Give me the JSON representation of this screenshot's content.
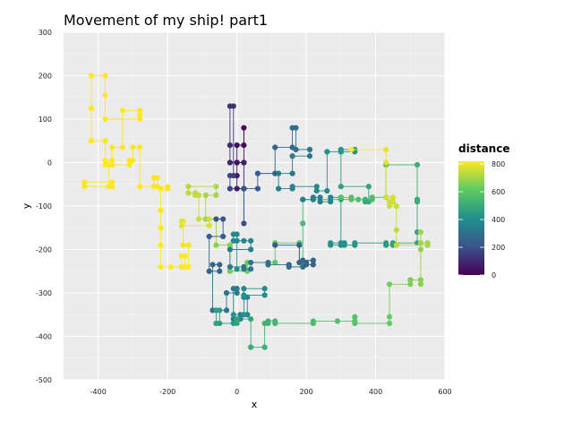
{
  "chart_data": {
    "type": "scatter",
    "title": "Movement of my ship! part1",
    "xlabel": "x",
    "ylabel": "y",
    "xlim": [
      -500,
      600
    ],
    "ylim": [
      -500,
      300
    ],
    "xticks": [
      "-400",
      "-200",
      "0",
      "200",
      "400",
      "600"
    ],
    "xtick_values": [
      -400,
      -200,
      0,
      200,
      400,
      600
    ],
    "yticks": [
      "300",
      "200",
      "100",
      "0",
      "-100",
      "-200",
      "-300",
      "-400",
      "-500"
    ],
    "ytick_values": [
      300,
      200,
      100,
      0,
      -100,
      -200,
      -300,
      -400,
      -500
    ],
    "grid": true,
    "legend": {
      "title": "distance",
      "placement": "right",
      "ticks": [
        "0",
        "200",
        "400",
        "600",
        "800"
      ],
      "tick_values": [
        0,
        200,
        400,
        600,
        800
      ],
      "range": [
        0,
        820
      ]
    },
    "colors": {
      "panel_bg": "#ebebeb",
      "grid_major": "#ffffff",
      "viridis": [
        "#440154",
        "#3b528b",
        "#21918c",
        "#5ec962",
        "#fde725"
      ]
    },
    "path": [
      [
        0,
        0
      ],
      [
        20,
        0
      ],
      [
        20,
        80
      ],
      [
        20,
        40
      ],
      [
        0,
        40
      ],
      [
        0,
        0
      ],
      [
        0,
        -30
      ],
      [
        0,
        -60
      ],
      [
        20,
        -60
      ],
      [
        20,
        0
      ],
      [
        -20,
        0
      ],
      [
        -20,
        40
      ],
      [
        -20,
        130
      ],
      [
        -10,
        130
      ],
      [
        -10,
        -30
      ],
      [
        -20,
        -30
      ],
      [
        -20,
        -60
      ],
      [
        20,
        -60
      ],
      [
        20,
        -140
      ],
      [
        20,
        -60
      ],
      [
        60,
        -60
      ],
      [
        60,
        -25
      ],
      [
        110,
        -25
      ],
      [
        110,
        35
      ],
      [
        160,
        35
      ],
      [
        160,
        80
      ],
      [
        170,
        80
      ],
      [
        170,
        30
      ],
      [
        210,
        30
      ],
      [
        210,
        15
      ],
      [
        160,
        15
      ],
      [
        160,
        -25
      ],
      [
        120,
        -25
      ],
      [
        120,
        -60
      ],
      [
        160,
        -60
      ],
      [
        160,
        -55
      ],
      [
        230,
        -55
      ],
      [
        230,
        -65
      ],
      [
        260,
        -65
      ],
      [
        260,
        25
      ],
      [
        300,
        25
      ],
      [
        300,
        30
      ],
      [
        340,
        30
      ],
      [
        340,
        25
      ],
      [
        300,
        25
      ],
      [
        300,
        -55
      ],
      [
        380,
        -55
      ],
      [
        380,
        -90
      ],
      [
        370,
        -90
      ],
      [
        370,
        -85
      ],
      [
        300,
        -85
      ],
      [
        270,
        -85
      ],
      [
        220,
        -85
      ],
      [
        190,
        -85
      ],
      [
        190,
        -140
      ],
      [
        190,
        -230
      ],
      [
        180,
        -230
      ],
      [
        180,
        -185
      ],
      [
        110,
        -185
      ],
      [
        110,
        -230
      ],
      [
        30,
        -230
      ],
      [
        30,
        -250
      ],
      [
        -20,
        -250
      ],
      [
        -20,
        -190
      ],
      [
        -60,
        -190
      ],
      [
        -60,
        -130
      ],
      [
        -90,
        -130
      ],
      [
        -90,
        -75
      ],
      [
        -60,
        -75
      ],
      [
        -60,
        -55
      ],
      [
        -140,
        -55
      ],
      [
        -140,
        -70
      ],
      [
        -120,
        -70
      ],
      [
        -120,
        -75
      ],
      [
        -110,
        -75
      ],
      [
        -110,
        -130
      ],
      [
        -80,
        -130
      ],
      [
        -80,
        -145
      ],
      [
        -160,
        -145
      ],
      [
        -160,
        -135
      ],
      [
        -155,
        -135
      ],
      [
        -155,
        -190
      ],
      [
        -140,
        -190
      ],
      [
        -140,
        -240
      ],
      [
        -160,
        -240
      ],
      [
        -160,
        -215
      ],
      [
        -150,
        -215
      ],
      [
        -150,
        -240
      ],
      [
        -190,
        -240
      ],
      [
        -220,
        -240
      ],
      [
        -220,
        -190
      ],
      [
        -220,
        -150
      ],
      [
        -220,
        -110
      ],
      [
        -220,
        -60
      ],
      [
        -200,
        -60
      ],
      [
        -200,
        -55
      ],
      [
        -240,
        -55
      ],
      [
        -240,
        -35
      ],
      [
        -230,
        -35
      ],
      [
        -230,
        -55
      ],
      [
        -240,
        -55
      ],
      [
        -280,
        -55
      ],
      [
        -280,
        35
      ],
      [
        -300,
        35
      ],
      [
        -300,
        5
      ],
      [
        -310,
        5
      ],
      [
        -310,
        -5
      ],
      [
        -360,
        -5
      ],
      [
        -360,
        5
      ],
      [
        -380,
        5
      ],
      [
        -380,
        -5
      ],
      [
        -360,
        -5
      ],
      [
        -360,
        35
      ],
      [
        -330,
        35
      ],
      [
        -330,
        120
      ],
      [
        -280,
        120
      ],
      [
        -280,
        110
      ],
      [
        -280,
        100
      ],
      [
        -380,
        100
      ],
      [
        -380,
        155
      ],
      [
        -380,
        200
      ],
      [
        -420,
        200
      ],
      [
        -420,
        125
      ],
      [
        -420,
        50
      ],
      [
        -380,
        50
      ],
      [
        -380,
        -5
      ],
      [
        -370,
        -5
      ],
      [
        -370,
        -55
      ],
      [
        -360,
        -55
      ],
      [
        -360,
        -45
      ],
      [
        -440,
        -45
      ],
      [
        -440,
        -55
      ],
      [
        -360,
        -55
      ]
    ],
    "path2": [
      [
        -60,
        -130
      ],
      [
        -40,
        -130
      ],
      [
        -40,
        -170
      ],
      [
        -80,
        -170
      ],
      [
        -80,
        -250
      ],
      [
        -50,
        -250
      ],
      [
        -50,
        -235
      ],
      [
        -70,
        -235
      ],
      [
        -70,
        -340
      ],
      [
        -30,
        -340
      ],
      [
        -30,
        -300
      ],
      [
        0,
        -300
      ],
      [
        0,
        -290
      ],
      [
        -10,
        -290
      ],
      [
        -10,
        -360
      ],
      [
        10,
        -360
      ],
      [
        10,
        -350
      ],
      [
        30,
        -350
      ],
      [
        30,
        -310
      ],
      [
        20,
        -310
      ],
      [
        20,
        -290
      ],
      [
        80,
        -290
      ],
      [
        80,
        -305
      ],
      [
        20,
        -305
      ],
      [
        20,
        -350
      ],
      [
        -10,
        -350
      ],
      [
        -10,
        -370
      ],
      [
        -50,
        -370
      ],
      [
        -50,
        -340
      ],
      [
        -60,
        -340
      ],
      [
        -60,
        -370
      ],
      [
        0,
        -370
      ],
      [
        0,
        -360
      ],
      [
        40,
        -360
      ],
      [
        40,
        -425
      ],
      [
        80,
        -425
      ],
      [
        80,
        -370
      ],
      [
        90,
        -370
      ],
      [
        90,
        -365
      ],
      [
        110,
        -365
      ],
      [
        110,
        -370
      ],
      [
        220,
        -370
      ],
      [
        220,
        -365
      ],
      [
        290,
        -365
      ],
      [
        340,
        -365
      ],
      [
        340,
        -355
      ],
      [
        340,
        -370
      ],
      [
        440,
        -370
      ],
      [
        440,
        -355
      ],
      [
        440,
        -280
      ],
      [
        500,
        -280
      ],
      [
        500,
        -270
      ],
      [
        530,
        -270
      ],
      [
        530,
        -280
      ],
      [
        530,
        -200
      ],
      [
        530,
        -160
      ],
      [
        530,
        -185
      ],
      [
        550,
        -185
      ],
      [
        550,
        -190
      ],
      [
        460,
        -190
      ],
      [
        460,
        -155
      ],
      [
        460,
        -100
      ],
      [
        440,
        -100
      ],
      [
        440,
        -90
      ],
      [
        450,
        -90
      ],
      [
        450,
        -80
      ],
      [
        430,
        -80
      ],
      [
        430,
        0
      ],
      [
        430,
        30
      ],
      [
        330,
        30
      ]
    ],
    "path3": [
      [
        110,
        -190
      ],
      [
        180,
        -190
      ],
      [
        180,
        -230
      ],
      [
        200,
        -230
      ],
      [
        200,
        -235
      ],
      [
        220,
        -235
      ],
      [
        220,
        -225
      ],
      [
        190,
        -225
      ],
      [
        190,
        -240
      ],
      [
        150,
        -240
      ],
      [
        150,
        -235
      ],
      [
        90,
        -235
      ],
      [
        90,
        -230
      ],
      [
        40,
        -230
      ],
      [
        40,
        -245
      ],
      [
        20,
        -245
      ],
      [
        20,
        -240
      ],
      [
        -20,
        -240
      ],
      [
        -20,
        -200
      ],
      [
        40,
        -200
      ],
      [
        40,
        -180
      ],
      [
        20,
        -180
      ],
      [
        0,
        -180
      ],
      [
        -10,
        -180
      ],
      [
        -10,
        -165
      ],
      [
        0,
        -165
      ],
      [
        0,
        -245
      ]
    ],
    "path4": [
      [
        190,
        -85
      ],
      [
        220,
        -85
      ],
      [
        220,
        -80
      ],
      [
        240,
        -80
      ],
      [
        240,
        -90
      ],
      [
        270,
        -90
      ],
      [
        270,
        -80
      ],
      [
        300,
        -80
      ],
      [
        300,
        -190
      ],
      [
        270,
        -190
      ],
      [
        270,
        -185
      ],
      [
        300,
        -185
      ],
      [
        310,
        -185
      ],
      [
        310,
        -190
      ],
      [
        340,
        -190
      ],
      [
        340,
        -185
      ],
      [
        430,
        -185
      ],
      [
        430,
        -190
      ],
      [
        450,
        -190
      ],
      [
        450,
        -185
      ],
      [
        520,
        -185
      ],
      [
        520,
        -160
      ],
      [
        520,
        -90
      ],
      [
        520,
        -85
      ],
      [
        520,
        -5
      ],
      [
        430,
        -5
      ],
      [
        430,
        -80
      ],
      [
        390,
        -80
      ],
      [
        390,
        -85
      ],
      [
        350,
        -85
      ],
      [
        330,
        -85
      ],
      [
        330,
        -80
      ],
      [
        300,
        -80
      ]
    ]
  }
}
